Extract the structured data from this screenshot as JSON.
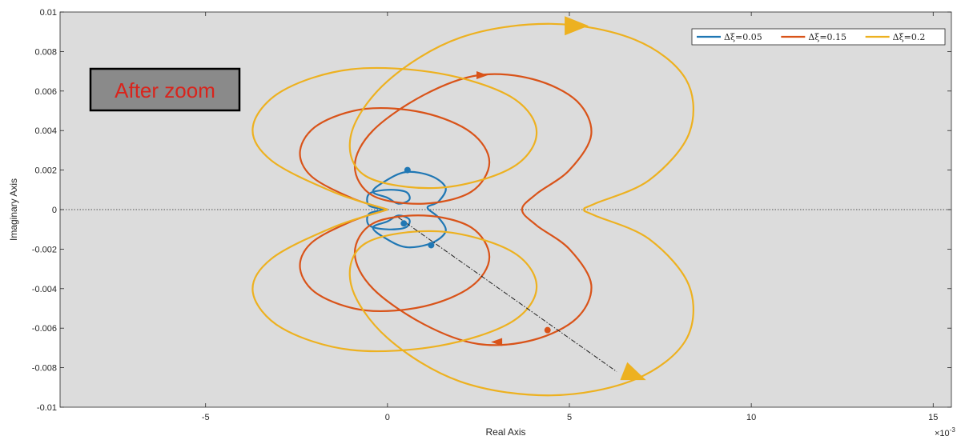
{
  "chart_data": {
    "type": "line",
    "title": "",
    "xlabel": "Real Axis",
    "ylabel": "Imaginary Axis",
    "x_exponent_label": "×10",
    "x_exponent_power": "-3",
    "xlim": [
      -9,
      15.5
    ],
    "ylim": [
      -0.01,
      0.01
    ],
    "xticks": [
      -5,
      0,
      5,
      10,
      15
    ],
    "xtick_labels": [
      "-5",
      "0",
      "5",
      "10",
      "15"
    ],
    "yticks": [
      -0.01,
      -0.008,
      -0.006,
      -0.004,
      -0.002,
      0,
      0.002,
      0.004,
      0.006,
      0.008,
      0.01
    ],
    "ytick_labels": [
      "-0.01",
      "-0.008",
      "-0.006",
      "-0.004",
      "-0.002",
      "0",
      "0.002",
      "0.004",
      "0.006",
      "0.008",
      "0.01"
    ],
    "grid": false,
    "background_color": "#dcdcdc",
    "legend_position": "top-right",
    "annotation": {
      "text": "After zoom",
      "text_color": "#d9241c",
      "box_color": "#8a8a8a"
    },
    "series": [
      {
        "name": "Δξ=0.05",
        "color": "#1f77b4",
        "points": [
          [
            0,
            0
          ],
          [
            -0.5,
            0.0002
          ],
          [
            -0.5,
            0.0008
          ],
          [
            0,
            0.001
          ],
          [
            0.5,
            0.0009
          ],
          [
            0.6,
            0.0005
          ],
          [
            0.3,
            0.0003
          ],
          [
            0,
            0.0006
          ],
          [
            -0.4,
            0.0009
          ],
          [
            -0.1,
            0.0014
          ],
          [
            0.5,
            0.0019
          ],
          [
            1.2,
            0.0017
          ],
          [
            1.6,
            0.0011
          ],
          [
            1.4,
            0.0004
          ],
          [
            1.1,
            0.0001
          ],
          [
            1.4,
            -0.0004
          ],
          [
            1.6,
            -0.0011
          ],
          [
            1.2,
            -0.0017
          ],
          [
            0.5,
            -0.0019
          ],
          [
            -0.1,
            -0.0014
          ],
          [
            -0.4,
            -0.0009
          ],
          [
            0,
            -0.0006
          ],
          [
            0.3,
            -0.0003
          ],
          [
            0.6,
            -0.0005
          ],
          [
            0.5,
            -0.0009
          ],
          [
            0,
            -0.001
          ],
          [
            -0.5,
            -0.0008
          ],
          [
            -0.5,
            -0.0002
          ],
          [
            0,
            0
          ]
        ]
      },
      {
        "name": "Δξ=0.15",
        "color": "#d95319",
        "points": [
          [
            0,
            0
          ],
          [
            -1,
            0.0006
          ],
          [
            -2.1,
            0.0017
          ],
          [
            -2.4,
            0.003
          ],
          [
            -1.9,
            0.0043
          ],
          [
            -0.6,
            0.0051
          ],
          [
            1,
            0.0049
          ],
          [
            2.3,
            0.0039
          ],
          [
            2.8,
            0.0024
          ],
          [
            2.3,
            0.0009
          ],
          [
            1,
            0.0003
          ],
          [
            -0.4,
            0.0007
          ],
          [
            -0.9,
            0.0022
          ],
          [
            -0.4,
            0.004
          ],
          [
            1,
            0.0058
          ],
          [
            2.5,
            0.0068
          ],
          [
            4,
            0.0066
          ],
          [
            5.2,
            0.0055
          ],
          [
            5.6,
            0.0038
          ],
          [
            5,
            0.002
          ],
          [
            4.1,
            0.0008
          ],
          [
            3.7,
            0
          ],
          [
            4.1,
            -0.0008
          ],
          [
            5,
            -0.002
          ],
          [
            5.6,
            -0.0038
          ],
          [
            5.2,
            -0.0055
          ],
          [
            4,
            -0.0066
          ],
          [
            2.5,
            -0.0068
          ],
          [
            1,
            -0.0058
          ],
          [
            -0.4,
            -0.004
          ],
          [
            -0.9,
            -0.0022
          ],
          [
            -0.4,
            -0.0007
          ],
          [
            1,
            -0.0003
          ],
          [
            2.3,
            -0.0009
          ],
          [
            2.8,
            -0.0024
          ],
          [
            2.3,
            -0.0039
          ],
          [
            1,
            -0.0049
          ],
          [
            -0.6,
            -0.0051
          ],
          [
            -1.9,
            -0.0043
          ],
          [
            -2.4,
            -0.003
          ],
          [
            -2.1,
            -0.0017
          ],
          [
            -1,
            -0.0006
          ],
          [
            0,
            0
          ]
        ]
      },
      {
        "name": "Δξ=0.2",
        "color": "#edb120",
        "points": [
          [
            0,
            0
          ],
          [
            -1.5,
            0.0009
          ],
          [
            -3.2,
            0.0025
          ],
          [
            -3.7,
            0.0042
          ],
          [
            -2.9,
            0.006
          ],
          [
            -1,
            0.0071
          ],
          [
            1.4,
            0.0069
          ],
          [
            3.4,
            0.0057
          ],
          [
            4.1,
            0.0039
          ],
          [
            3.4,
            0.0021
          ],
          [
            1.4,
            0.0011
          ],
          [
            -0.6,
            0.0017
          ],
          [
            -1,
            0.0038
          ],
          [
            0,
            0.0065
          ],
          [
            2,
            0.0087
          ],
          [
            4.5,
            0.0094
          ],
          [
            6.8,
            0.0086
          ],
          [
            8.2,
            0.0066
          ],
          [
            8.3,
            0.0039
          ],
          [
            7.2,
            0.0015
          ],
          [
            5.7,
            0.0003
          ],
          [
            5.4,
            0
          ],
          [
            5.7,
            -0.0003
          ],
          [
            7.2,
            -0.0015
          ],
          [
            8.3,
            -0.0039
          ],
          [
            8.2,
            -0.0066
          ],
          [
            6.8,
            -0.0086
          ],
          [
            4.5,
            -0.0094
          ],
          [
            2,
            -0.0087
          ],
          [
            0,
            -0.0065
          ],
          [
            -1,
            -0.0038
          ],
          [
            -0.6,
            -0.0017
          ],
          [
            1.4,
            -0.0011
          ],
          [
            3.4,
            -0.0021
          ],
          [
            4.1,
            -0.0039
          ],
          [
            3.4,
            -0.0057
          ],
          [
            1.4,
            -0.0069
          ],
          [
            -1,
            -0.0071
          ],
          [
            -2.9,
            -0.006
          ],
          [
            -3.7,
            -0.0042
          ],
          [
            -3.2,
            -0.0025
          ],
          [
            -1.5,
            -0.0009
          ],
          [
            0,
            0
          ]
        ]
      }
    ],
    "dashed_line": {
      "color": "#222222",
      "points": [
        [
          0.3,
          -0.0004
        ],
        [
          6.3,
          -0.0082
        ]
      ]
    },
    "arrow_markers": [
      {
        "series": 2,
        "x": 5.2,
        "y": 0.0093,
        "direction": [
          1,
          0
        ],
        "size": "large"
      },
      {
        "series": 2,
        "x": 6.8,
        "y": -0.0084,
        "direction": [
          1,
          -0.4
        ],
        "size": "large"
      },
      {
        "series": 1,
        "x": 2.6,
        "y": 0.0068,
        "direction": [
          1,
          0
        ],
        "size": "small"
      },
      {
        "series": 1,
        "x": 3.0,
        "y": -0.0067,
        "direction": [
          -1,
          0
        ],
        "size": "small"
      }
    ],
    "dot_markers": [
      {
        "series": 0,
        "x": 1.2,
        "y": -0.0018
      },
      {
        "series": 1,
        "x": 4.4,
        "y": -0.0061
      },
      {
        "series": 0,
        "x": 0.55,
        "y": 0.002
      },
      {
        "series": 0,
        "x": 0.45,
        "y": -0.0007
      }
    ]
  }
}
